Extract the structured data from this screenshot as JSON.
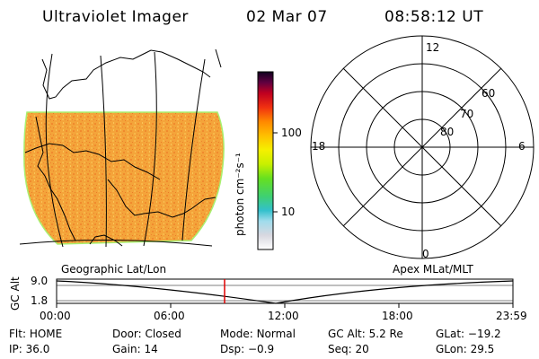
{
  "header": {
    "instrument": "Ultraviolet Imager",
    "date": "02 Mar 07",
    "time": "08:58:12 UT"
  },
  "colorbar": {
    "unit_label": "photon cm⁻²s⁻¹",
    "ticks": [
      "100",
      "10"
    ]
  },
  "map": {
    "caption": "Geographic Lat/Lon",
    "image_color": "#f2a23a"
  },
  "polar": {
    "caption": "Apex MLat/MLT",
    "mlt_labels": {
      "top": "12",
      "bottom": "0",
      "left": "18",
      "right": "6"
    },
    "mlat_labels": [
      "60",
      "70",
      "80"
    ]
  },
  "altitude_plot": {
    "ylabel": "GC Alt",
    "yticks": [
      "9.0",
      "1.8"
    ],
    "xticks": [
      "00:00",
      "06:00",
      "12:00",
      "18:00",
      "23:59"
    ],
    "current_time_marker": "08:58",
    "marker_color": "#e00000"
  },
  "footer": {
    "flt_label": "Flt:",
    "flt_value": "HOME",
    "door_label": "Door:",
    "door_value": "Closed",
    "mode_label": "Mode:",
    "mode_value": "Normal",
    "gcalt_label": "GC Alt:",
    "gcalt_value": "5.2 Re",
    "glat_label": "GLat:",
    "glat_value": "−19.2",
    "ip_label": "IP:",
    "ip_value": "36.0",
    "gain_label": "Gain:",
    "gain_value": "14",
    "dsp_label": "Dsp:",
    "dsp_value": "−0.9",
    "seq_label": "Seq:",
    "seq_value": "20",
    "glon_label": "GLon:",
    "glon_value": "29.5"
  }
}
